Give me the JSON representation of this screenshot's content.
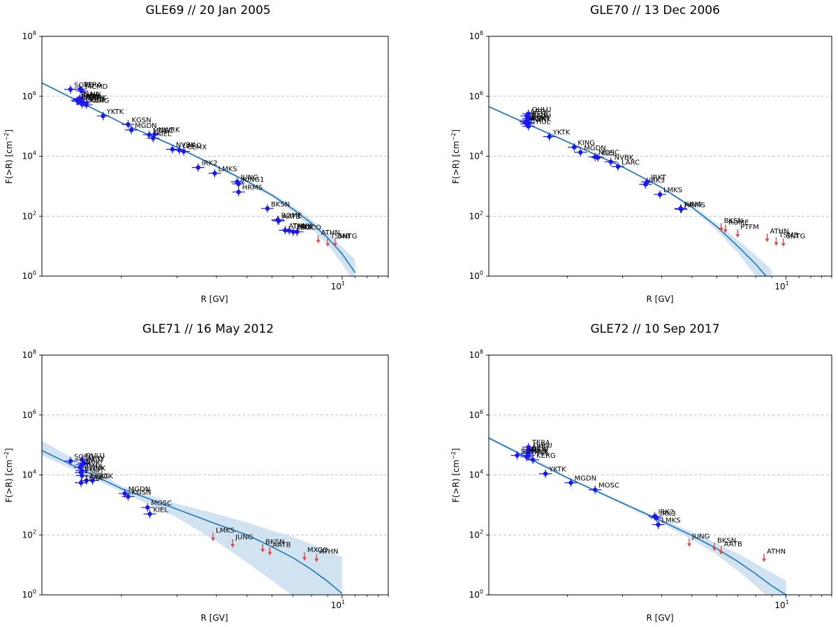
{
  "figure": {
    "colors": {
      "fit": "#1f77b4",
      "band": "#c6dcee",
      "point": "#1a1aee",
      "limit": "#e84545",
      "grid": "#b0b0b0"
    },
    "x_ticks": [
      {
        "value": 10,
        "base": "10",
        "exp": "1"
      }
    ],
    "y_ticks": [
      {
        "value": 1,
        "base": "10",
        "exp": "0"
      },
      {
        "value": 100,
        "base": "10",
        "exp": "2"
      },
      {
        "value": 10000,
        "base": "10",
        "exp": "4"
      },
      {
        "value": 1000000,
        "base": "10",
        "exp": "6"
      },
      {
        "value": 100000000,
        "base": "10",
        "exp": "8"
      }
    ]
  },
  "chart_data": [
    {
      "type": "scatter",
      "title": "GLE69 // 20 Jan 2005",
      "xlabel": "R [GV]",
      "ylabel": "F(>R) [cm",
      "ylabel_exp": "−2",
      "xscale": "log",
      "yscale": "log",
      "xlim": [
        1.12,
        14
      ],
      "ylim": [
        1,
        100000000
      ],
      "grid": "y-major dashed",
      "fit": {
        "x": [
          1.12,
          2,
          3,
          4,
          5,
          6,
          7,
          8,
          9,
          10,
          11
        ],
        "y": [
          2800000,
          130000,
          20000,
          4600,
          1450,
          500,
          170,
          58,
          19,
          5.5,
          1.3
        ],
        "band_lower": [
          2600000,
          122000,
          18500,
          4200,
          1300,
          420,
          135,
          40,
          11,
          2.6,
          0.5
        ],
        "band_upper": [
          3000000,
          138000,
          21500,
          5000,
          1600,
          580,
          205,
          75,
          28,
          9.5,
          3.5
        ]
      },
      "points": [
        {
          "name": "SOPO",
          "x": 1.38,
          "y": 1700000
        },
        {
          "name": "TERA",
          "x": 1.48,
          "y": 1750000
        },
        {
          "name": "MCMD",
          "x": 1.5,
          "y": 1500000
        },
        {
          "name": "NAIN",
          "x": 1.48,
          "y": 850000
        },
        {
          "name": "THUL",
          "x": 1.47,
          "y": 780000
        },
        {
          "name": "INVK",
          "x": 1.45,
          "y": 720000
        },
        {
          "name": "FSMT",
          "x": 1.46,
          "y": 680000
        },
        {
          "name": "PWNK",
          "x": 1.5,
          "y": 640000
        },
        {
          "name": "APTY",
          "x": 1.52,
          "y": 600000
        },
        {
          "name": "OULU",
          "x": 1.5,
          "y": 550000
        },
        {
          "name": "KERG",
          "x": 1.55,
          "y": 520000
        },
        {
          "name": "YKTK",
          "x": 1.75,
          "y": 220000
        },
        {
          "name": "KGSN",
          "x": 2.1,
          "y": 115000
        },
        {
          "name": "MGDN",
          "x": 2.15,
          "y": 75000
        },
        {
          "name": "MOSC",
          "x": 2.45,
          "y": 52000
        },
        {
          "name": "NWRK",
          "x": 2.55,
          "y": 54000
        },
        {
          "name": "KIEL",
          "x": 2.52,
          "y": 40000
        },
        {
          "name": "NVBK",
          "x": 2.9,
          "y": 17000
        },
        {
          "name": "LARC",
          "x": 3.05,
          "y": 16000
        },
        {
          "name": "CLMX",
          "x": 3.15,
          "y": 14500
        },
        {
          "name": "IRK2",
          "x": 3.5,
          "y": 4200
        },
        {
          "name": "LMKS",
          "x": 3.95,
          "y": 2700
        },
        {
          "name": "JUNG",
          "x": 4.65,
          "y": 1400
        },
        {
          "name": "JUNG1",
          "x": 4.7,
          "y": 1200
        },
        {
          "name": "HRMS",
          "x": 4.7,
          "y": 640
        },
        {
          "name": "BKSN",
          "x": 5.8,
          "y": 180
        },
        {
          "name": "ROME",
          "x": 6.25,
          "y": 75
        },
        {
          "name": "AATB",
          "x": 6.3,
          "y": 70
        },
        {
          "name": "ATHN",
          "x": 6.6,
          "y": 34
        },
        {
          "name": "TSMB",
          "x": 6.8,
          "y": 33
        },
        {
          "name": "ESOI",
          "x": 7.0,
          "y": 30
        },
        {
          "name": "MXCO",
          "x": 7.2,
          "y": 30
        }
      ],
      "upper_limits": [
        {
          "name": "ATHN",
          "x": 8.4,
          "y": 18
        },
        {
          "name": "TSMB",
          "x": 9.0,
          "y": 14
        },
        {
          "name": "SNTG",
          "x": 9.5,
          "y": 14
        }
      ]
    },
    {
      "type": "scatter",
      "title": "GLE70 // 13 Dec 2006",
      "xlabel": "R [GV]",
      "ylabel": "F(>R) [cm",
      "ylabel_exp": "−2",
      "xscale": "log",
      "yscale": "log",
      "xlim": [
        1.12,
        14
      ],
      "ylim": [
        1,
        100000000
      ],
      "grid": "y-major dashed",
      "fit": {
        "x": [
          1.12,
          2,
          3,
          4,
          5,
          6,
          7,
          8,
          9
        ],
        "y": [
          450000,
          30000,
          4400,
          900,
          200,
          45,
          10,
          2.5,
          0.6
        ],
        "band_lower": [
          420000,
          28000,
          4100,
          830,
          175,
          34,
          6,
          1.0,
          0.2
        ],
        "band_upper": [
          480000,
          32000,
          4700,
          970,
          225,
          58,
          16,
          5,
          1.6
        ]
      },
      "points": [
        {
          "name": "OULU",
          "x": 1.5,
          "y": 260000
        },
        {
          "name": "APTY",
          "x": 1.48,
          "y": 220000
        },
        {
          "name": "KERG",
          "x": 1.5,
          "y": 180000
        },
        {
          "name": "NAIN",
          "x": 1.49,
          "y": 160000
        },
        {
          "name": "INVK",
          "x": 1.47,
          "y": 140000
        },
        {
          "name": "FSMT",
          "x": 1.5,
          "y": 130000
        },
        {
          "name": "PWNK",
          "x": 1.48,
          "y": 120000
        },
        {
          "name": "THUL",
          "x": 1.5,
          "y": 100000
        },
        {
          "name": "YKTK",
          "x": 1.75,
          "y": 45000
        },
        {
          "name": "KING",
          "x": 2.1,
          "y": 20000
        },
        {
          "name": "MGDN",
          "x": 2.2,
          "y": 13500
        },
        {
          "name": "MOSC",
          "x": 2.45,
          "y": 9500
        },
        {
          "name": "KIEL",
          "x": 2.5,
          "y": 9000
        },
        {
          "name": "NVBK",
          "x": 2.75,
          "y": 6500
        },
        {
          "name": "LARC",
          "x": 2.9,
          "y": 4500
        },
        {
          "name": "IRKT",
          "x": 3.6,
          "y": 1400
        },
        {
          "name": "IRK3",
          "x": 3.55,
          "y": 1150
        },
        {
          "name": "LMKS",
          "x": 3.95,
          "y": 530
        },
        {
          "name": "JUNG",
          "x": 4.6,
          "y": 180
        },
        {
          "name": "HRMS",
          "x": 4.62,
          "y": 170
        }
      ],
      "upper_limits": [
        {
          "name": "BKSN",
          "x": 6.2,
          "y": 45
        },
        {
          "name": "ROME",
          "x": 6.4,
          "y": 40
        },
        {
          "name": "PTFM",
          "x": 7.0,
          "y": 28
        },
        {
          "name": "ATHN",
          "x": 8.7,
          "y": 20
        },
        {
          "name": "TSMB",
          "x": 9.3,
          "y": 15
        },
        {
          "name": "SNTG",
          "x": 9.8,
          "y": 14
        }
      ]
    },
    {
      "type": "scatter",
      "title": "GLE71 // 16 May 2012",
      "xlabel": "R [GV]",
      "ylabel": "F(>R) [cm",
      "ylabel_exp": "−2",
      "xscale": "log",
      "yscale": "log",
      "xlim": [
        1.12,
        14
      ],
      "ylim": [
        1,
        100000000
      ],
      "grid": "y-major dashed",
      "fit": {
        "x": [
          1.12,
          2,
          3,
          4,
          5,
          6,
          7,
          8,
          9,
          10
        ],
        "y": [
          65000,
          3500,
          720,
          230,
          100,
          40,
          17,
          7,
          2.8,
          1.1
        ],
        "band_lower": [
          45000,
          2800,
          380,
          60,
          12,
          3,
          0.9,
          0.3,
          0.1,
          0.05
        ],
        "band_upper": [
          140000,
          4300,
          1100,
          500,
          260,
          140,
          85,
          50,
          30,
          18
        ]
      },
      "points": [
        {
          "name": "SOPO",
          "x": 1.38,
          "y": 29000
        },
        {
          "name": "OULU",
          "x": 1.5,
          "y": 32000
        },
        {
          "name": "APTY",
          "x": 1.52,
          "y": 25000
        },
        {
          "name": "NAIN",
          "x": 1.5,
          "y": 22000
        },
        {
          "name": "INVK",
          "x": 1.48,
          "y": 18000
        },
        {
          "name": "THUL",
          "x": 1.5,
          "y": 14000
        },
        {
          "name": "PWNK",
          "x": 1.49,
          "y": 12000
        },
        {
          "name": "FSMT",
          "x": 1.5,
          "y": 9500
        },
        {
          "name": "KERG",
          "x": 1.55,
          "y": 6500
        },
        {
          "name": "TERA",
          "x": 1.49,
          "y": 5500
        },
        {
          "name": "YKTK",
          "x": 1.62,
          "y": 6500
        },
        {
          "name": "MGDN",
          "x": 2.05,
          "y": 2400
        },
        {
          "name": "KGSN",
          "x": 2.1,
          "y": 1900
        },
        {
          "name": "MOSC",
          "x": 2.42,
          "y": 820
        },
        {
          "name": "KIEL",
          "x": 2.46,
          "y": 500
        }
      ],
      "upper_limits": [
        {
          "name": "LMKS",
          "x": 3.9,
          "y": 90
        },
        {
          "name": "JUNG",
          "x": 4.5,
          "y": 55
        },
        {
          "name": "BKSN",
          "x": 5.6,
          "y": 38
        },
        {
          "name": "AATB",
          "x": 5.9,
          "y": 30
        },
        {
          "name": "MXCO",
          "x": 7.6,
          "y": 20
        },
        {
          "name": "ATHN",
          "x": 8.3,
          "y": 18
        }
      ]
    },
    {
      "type": "scatter",
      "title": "GLE72 // 10 Sep 2017",
      "xlabel": "R [GV]",
      "ylabel": "F(>R) [cm",
      "ylabel_exp": "−2",
      "xscale": "log",
      "yscale": "log",
      "xlim": [
        1.12,
        14
      ],
      "ylim": [
        1,
        100000000
      ],
      "grid": "y-major dashed",
      "fit": {
        "x": [
          1.12,
          2,
          3,
          4,
          5,
          6,
          7,
          8,
          9,
          10
        ],
        "y": [
          170000,
          8000,
          1150,
          290,
          95,
          35,
          13,
          5,
          2,
          1.0
        ],
        "band_lower": [
          155000,
          7300,
          1020,
          240,
          70,
          22,
          6.5,
          2.0,
          0.6,
          0.25
        ],
        "band_upper": [
          190000,
          8700,
          1280,
          340,
          125,
          52,
          24,
          11,
          5.5,
          3.0
        ]
      },
      "points": [
        {
          "name": "SOPO",
          "x": 1.38,
          "y": 45000
        },
        {
          "name": "TERA",
          "x": 1.5,
          "y": 85000
        },
        {
          "name": "OULU",
          "x": 1.51,
          "y": 70000
        },
        {
          "name": "APTY",
          "x": 1.5,
          "y": 60000
        },
        {
          "name": "NAIN",
          "x": 1.49,
          "y": 52000
        },
        {
          "name": "INVK",
          "x": 1.5,
          "y": 45000
        },
        {
          "name": "THUL",
          "x": 1.48,
          "y": 40000
        },
        {
          "name": "KERG",
          "x": 1.55,
          "y": 32000
        },
        {
          "name": "YKTK",
          "x": 1.7,
          "y": 11000
        },
        {
          "name": "MGDN",
          "x": 2.05,
          "y": 5500
        },
        {
          "name": "MOSC",
          "x": 2.45,
          "y": 3200
        },
        {
          "name": "IRK2",
          "x": 3.8,
          "y": 420
        },
        {
          "name": "IRK3",
          "x": 3.85,
          "y": 370
        },
        {
          "name": "LMKS",
          "x": 3.9,
          "y": 220
        }
      ],
      "upper_limits": [
        {
          "name": "JUNG",
          "x": 4.9,
          "y": 58
        },
        {
          "name": "BKSN",
          "x": 5.9,
          "y": 42
        },
        {
          "name": "AATB",
          "x": 6.2,
          "y": 32
        },
        {
          "name": "ATHN",
          "x": 8.5,
          "y": 18
        }
      ]
    }
  ]
}
